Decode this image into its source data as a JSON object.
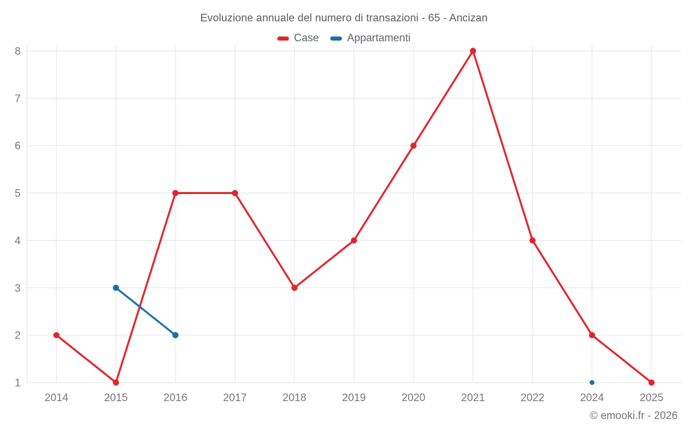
{
  "chart_data": {
    "type": "line",
    "title": "Evoluzione annuale del numero di transazioni - 65 - Ancizan",
    "watermark": "© emooki.fr - 2026",
    "categories": [
      "2014",
      "2015",
      "2016",
      "2017",
      "2018",
      "2019",
      "2020",
      "2021",
      "2022",
      "2024",
      "2025"
    ],
    "series": [
      {
        "name": "Case",
        "color": "#e0262d",
        "values": [
          2,
          1,
          5,
          5,
          3,
          4,
          6,
          8,
          4,
          2,
          1
        ]
      },
      {
        "name": "Appartamenti",
        "color": "#1b6fa9",
        "values": [
          null,
          3,
          2,
          null,
          null,
          null,
          null,
          null,
          null,
          1,
          null
        ]
      }
    ],
    "xlabel": "",
    "ylabel": "",
    "yticks": [
      1,
      2,
      3,
      4,
      5,
      6,
      7,
      8
    ],
    "ylim": [
      1,
      8
    ],
    "grid": true,
    "legend_position": "top",
    "axis_text_color": "#757575",
    "grid_color": "#e7e7e7"
  }
}
